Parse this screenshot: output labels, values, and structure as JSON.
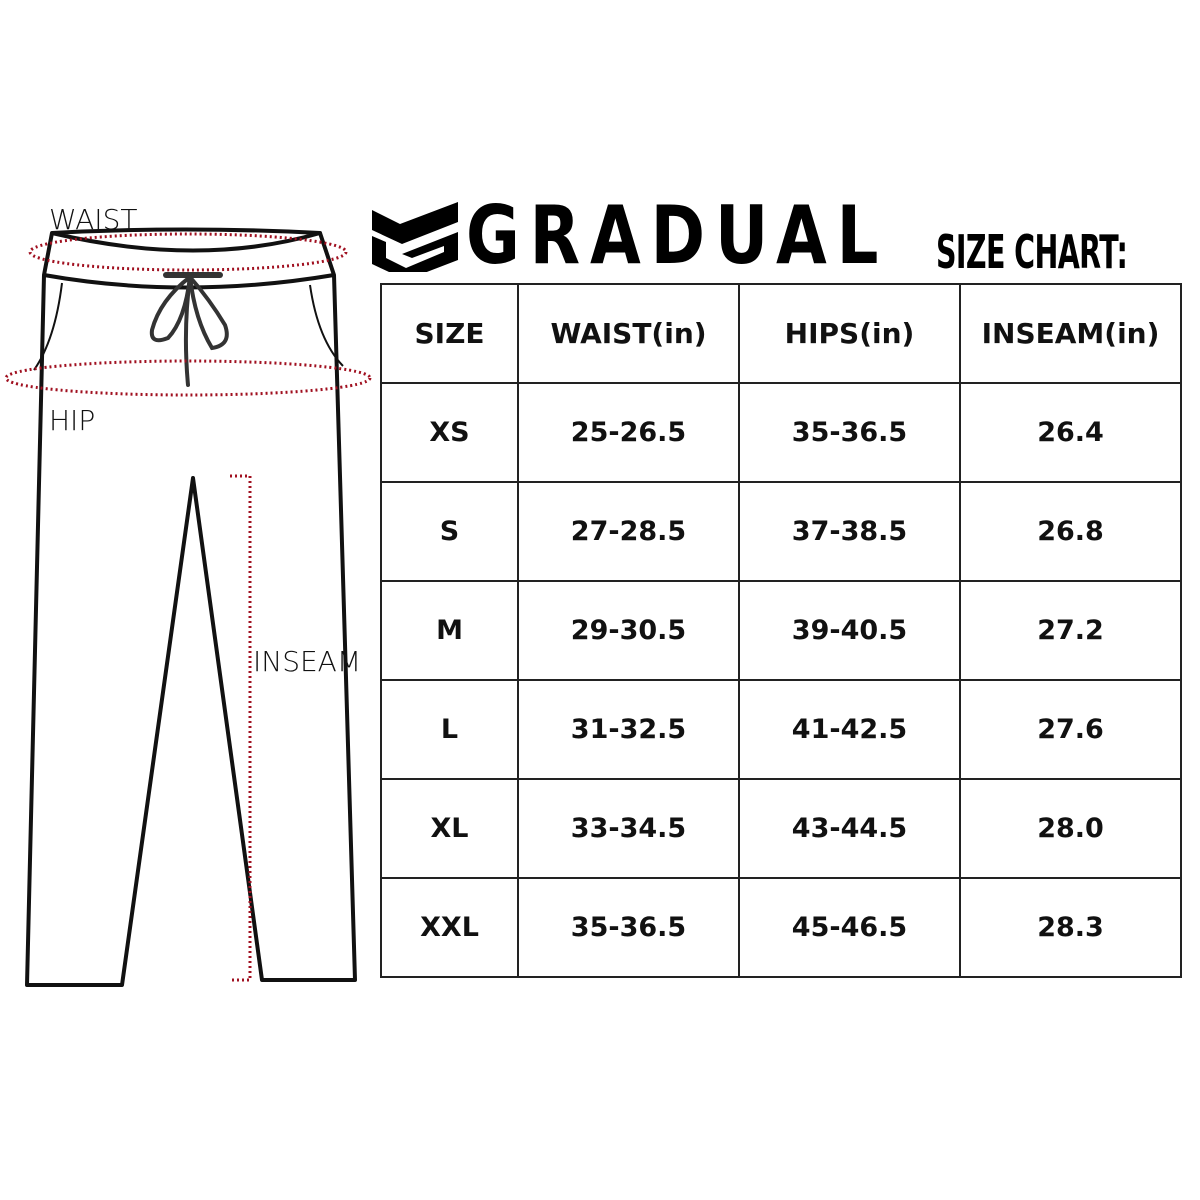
{
  "diagram": {
    "labels": {
      "waist": "WAIST",
      "hip": "HIP",
      "inseam": "INSEAM"
    },
    "measure_color": "#a01020"
  },
  "brand": {
    "name": "GRADUAL",
    "subtitle": "SIZE CHART:",
    "logo_icon": "g-shield-logo"
  },
  "table": {
    "headers": [
      "SIZE",
      "WAIST(in)",
      "HIPS(in)",
      "INSEAM(in)"
    ],
    "rows": [
      [
        "XS",
        "25-26.5",
        "35-36.5",
        "26.4"
      ],
      [
        "S",
        "27-28.5",
        "37-38.5",
        "26.8"
      ],
      [
        "M",
        "29-30.5",
        "39-40.5",
        "27.2"
      ],
      [
        "L",
        "31-32.5",
        "41-42.5",
        "27.6"
      ],
      [
        "XL",
        "33-34.5",
        "43-44.5",
        "28.0"
      ],
      [
        "XXL",
        "35-36.5",
        "45-46.5",
        "28.3"
      ]
    ]
  }
}
